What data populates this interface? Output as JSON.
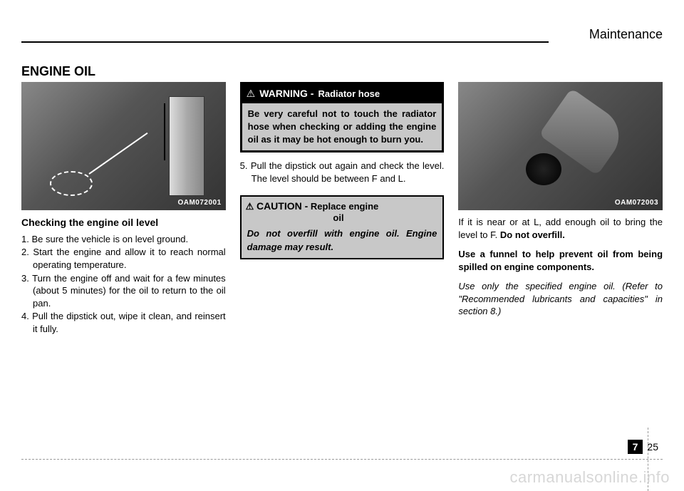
{
  "header": {
    "section": "Maintenance"
  },
  "title": "ENGINE OIL",
  "col1": {
    "img_label": "OAM072001",
    "subheading": "Checking the engine oil level",
    "steps": [
      "1. Be sure the vehicle is on level ground.",
      "2. Start the engine and allow it to reach normal operating temperature.",
      "3. Turn the engine off and wait for a few minutes (about 5 minutes) for the oil to return to the oil pan.",
      "4. Pull the dipstick out, wipe it clean, and reinsert it fully."
    ]
  },
  "col2": {
    "warning": {
      "icon": "⚠",
      "title": "WARNING -",
      "subtitle": "Radiator hose",
      "body": "Be very careful not to touch the radiator hose when checking or adding the engine oil as it may be hot enough to burn you."
    },
    "step5": "5. Pull the dipstick out again and check the level. The level should be between F and L.",
    "caution": {
      "icon": "⚠",
      "title": "CAUTION -",
      "subtitle": "Replace engine oil",
      "body": "Do not overfill with engine oil. Engine damage may result."
    }
  },
  "col3": {
    "img_label": "OAM072003",
    "p1a": "If it is near or at L, add enough oil to bring the level to F. ",
    "p1b": "Do not overfill.",
    "p2": "Use a funnel to help prevent oil from being spilled on engine components.",
    "p3": "Use only the specified engine oil. (Refer to \"Recommended lubricants and capacities\" in section 8.)"
  },
  "footer": {
    "chapter": "7",
    "page": "25"
  },
  "watermark": "carmanualsonline.info"
}
